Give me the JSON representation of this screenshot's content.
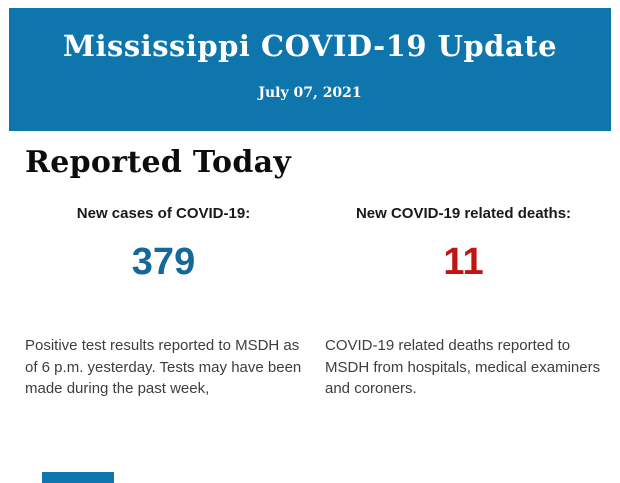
{
  "header": {
    "title": "Mississippi COVID-19 Update",
    "date": "July 07, 2021",
    "background_color": "#0e76ad",
    "text_color": "#ffffff"
  },
  "section": {
    "heading": "Reported Today"
  },
  "stats": [
    {
      "label": "New cases of COVID-19:",
      "value": "379",
      "value_color": "#15689a",
      "description": "Positive test results reported to MSDH as of 6 p.m. yesterday. Tests may have been made during the past week,"
    },
    {
      "label": "New COVID-19 related deaths:",
      "value": "11",
      "value_color": "#c31414",
      "description": "COVID-19 related deaths reported to MSDH from hospitals, medical examiners and coroners."
    }
  ]
}
